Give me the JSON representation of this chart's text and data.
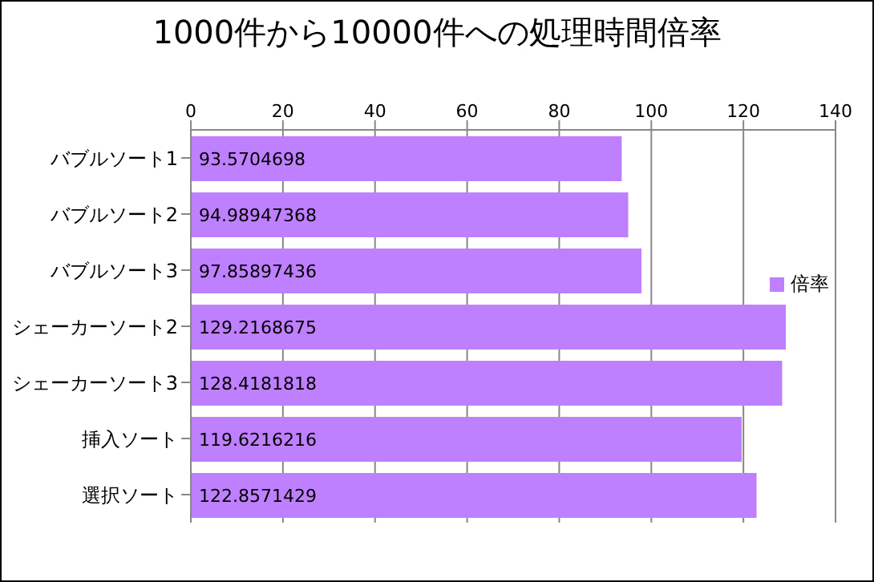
{
  "chart_data": {
    "type": "bar",
    "orientation": "horizontal",
    "title": "1000件から10000件への処理時間倍率",
    "categories": [
      "バブルソート1",
      "バブルソート2",
      "バブルソート3",
      "シェーカーソート2",
      "シェーカーソート3",
      "挿入ソート",
      "選択ソート"
    ],
    "series": [
      {
        "name": "倍率",
        "color": "#bf80ff",
        "values": [
          93.5704698,
          94.98947368,
          97.85897436,
          129.2168675,
          128.4181818,
          119.6216216,
          122.8571429
        ]
      }
    ],
    "xlim": [
      0,
      140
    ],
    "xticks": [
      0,
      20,
      40,
      60,
      80,
      100,
      120,
      140
    ],
    "grid": "x",
    "legend": "right",
    "data_labels": true
  }
}
